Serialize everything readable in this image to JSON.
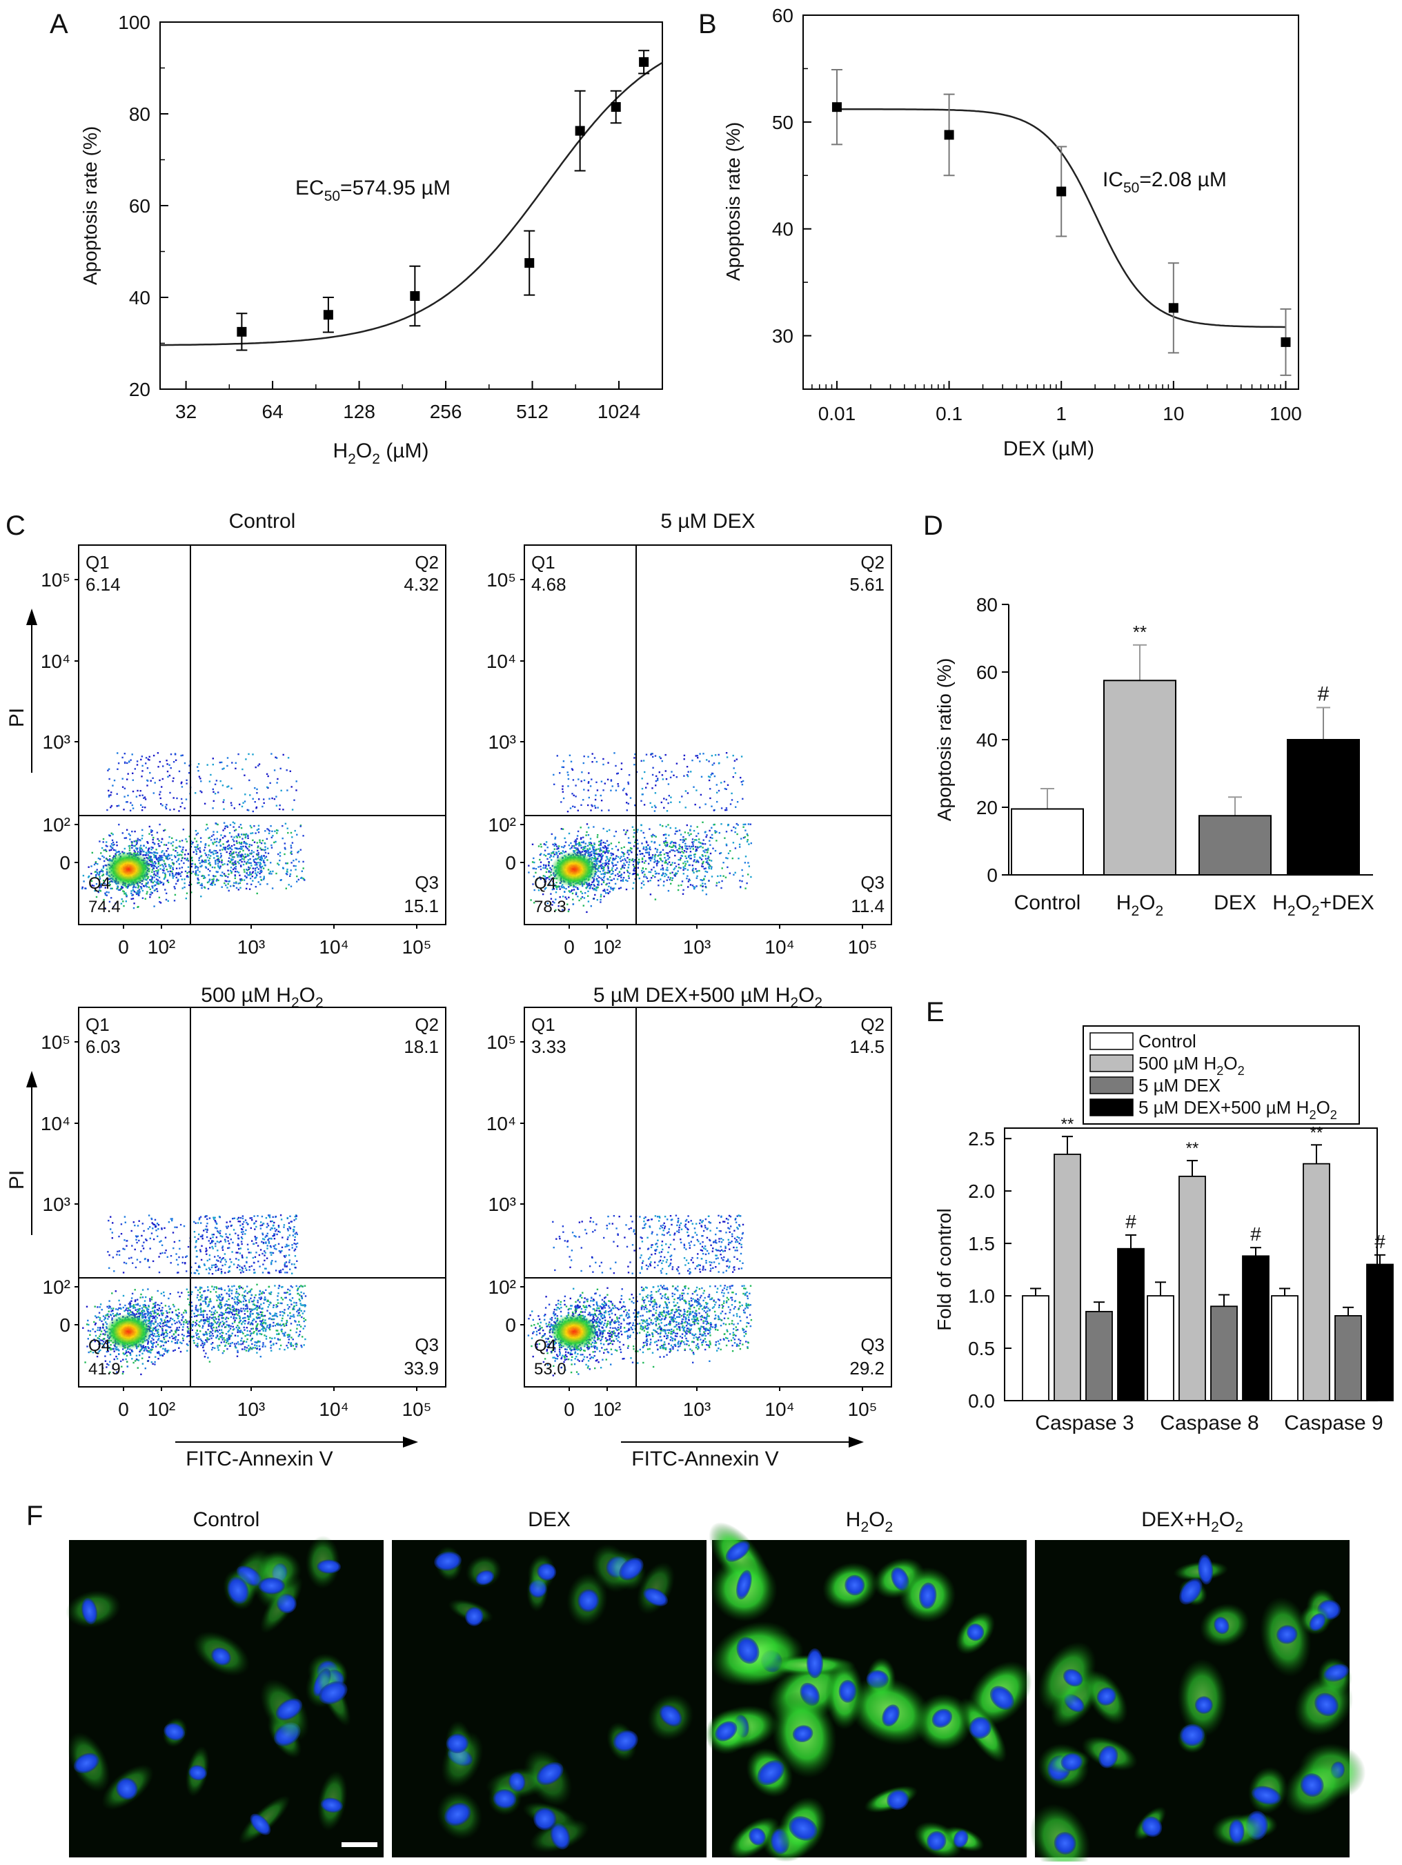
{
  "chart_data": [
    {
      "panel": "A",
      "type": "scatter",
      "xlabel": "H2O2 (µM)",
      "ylabel": "Apoptosis rate (%)",
      "xscale": "log2",
      "xlim": [
        26,
        1450
      ],
      "ylim": [
        20,
        100
      ],
      "xticks": [
        "32",
        "64",
        "128",
        "256",
        "512",
        "1024"
      ],
      "yticks": [
        "20",
        "40",
        "60",
        "80",
        "100"
      ],
      "x": [
        50,
        100,
        200,
        500,
        750,
        1000,
        1250
      ],
      "y": [
        32.5,
        36.2,
        40.3,
        47.5,
        76.3,
        81.5,
        91.3
      ],
      "err": [
        4.0,
        3.8,
        6.5,
        7.0,
        8.7,
        3.5,
        2.5
      ],
      "fit": {
        "kind": "logistic",
        "bottom": 29.5,
        "top": 100,
        "ec50": 574.95,
        "hill": 2.1
      },
      "annotation": "EC50=574.95 µM"
    },
    {
      "panel": "B",
      "type": "scatter",
      "xlabel": "DEX (µM)",
      "ylabel": "Apoptosis rate (%)",
      "xscale": "log10",
      "xlim": [
        0.005,
        130
      ],
      "ylim": [
        25,
        60
      ],
      "xticks": [
        "0.01",
        "0.1",
        "1",
        "10",
        "100"
      ],
      "yticks": [
        "30",
        "40",
        "50",
        "60"
      ],
      "x": [
        0.01,
        0.1,
        1,
        10,
        100
      ],
      "y": [
        51.4,
        48.8,
        43.5,
        32.6,
        29.4
      ],
      "err": [
        3.5,
        3.8,
        4.2,
        4.2,
        3.1
      ],
      "fit": {
        "kind": "logistic",
        "bottom": 30.8,
        "top": 51.2,
        "ic50": 2.08,
        "hill": 1.9
      },
      "annotation": "IC50=2.08 µM"
    },
    {
      "panel": "D",
      "type": "bar",
      "ylabel": "Apoptosis ratio (%)",
      "ylim": [
        0,
        80
      ],
      "yticks": [
        "0",
        "20",
        "40",
        "60",
        "80"
      ],
      "categories": [
        "Control",
        "H2O2",
        "DEX",
        "H2O2+DEX"
      ],
      "values": [
        19.5,
        57.5,
        17.5,
        40.0
      ],
      "err": [
        6.0,
        10.5,
        5.5,
        9.5
      ],
      "colors": [
        "#ffffff",
        "#bdbdbd",
        "#7a7a7a",
        "#000000"
      ],
      "markers": [
        "",
        "**",
        "",
        "#"
      ]
    },
    {
      "panel": "E",
      "type": "bar",
      "ylabel": "Fold of control",
      "ylim": [
        0,
        2.6
      ],
      "yticks": [
        "0.0",
        "0.5",
        "1.0",
        "1.5",
        "2.0",
        "2.5"
      ],
      "categories": [
        "Caspase 3",
        "Caspase 8",
        "Caspase 9"
      ],
      "series": [
        {
          "name": "Control",
          "color": "#ffffff",
          "values": [
            1.0,
            1.0,
            1.0
          ],
          "err": [
            0.07,
            0.13,
            0.07
          ],
          "markers": [
            "",
            "",
            ""
          ]
        },
        {
          "name": "500 µM H2O2",
          "color": "#bdbdbd",
          "values": [
            2.35,
            2.14,
            2.26
          ],
          "err": [
            0.17,
            0.15,
            0.18
          ],
          "markers": [
            "**",
            "**",
            "**"
          ]
        },
        {
          "name": "5 µM DEX",
          "color": "#7a7a7a",
          "values": [
            0.85,
            0.9,
            0.81
          ],
          "err": [
            0.09,
            0.11,
            0.08
          ],
          "markers": [
            "",
            "",
            ""
          ]
        },
        {
          "name": "5 µM DEX+500 µM H2O2",
          "color": "#000000",
          "values": [
            1.45,
            1.38,
            1.3
          ],
          "err": [
            0.13,
            0.08,
            0.09
          ],
          "markers": [
            "#",
            "#",
            "#"
          ]
        }
      ],
      "legend_position": "top"
    }
  ],
  "panel_labels": {
    "a": "A",
    "b": "B",
    "c": "C",
    "d": "D",
    "e": "E",
    "f": "F"
  },
  "flow": {
    "ylabel": "PI",
    "xlabel": "FITC-Annexin V",
    "xticks": [
      "0",
      "10²",
      "10³",
      "10⁴",
      "10⁵"
    ],
    "yticks": [
      "10⁵",
      "10⁴",
      "10³",
      "10²",
      "0"
    ],
    "plots": [
      {
        "title": "Control",
        "q1": "6.14",
        "q2": "4.32",
        "q3": "15.1",
        "q4": "74.4",
        "ul": 0.0614,
        "ur": 0.0432
      },
      {
        "title": "5 µM DEX",
        "q1": "4.68",
        "q2": "5.61",
        "q3": "11.4",
        "q4": "78.3",
        "ul": 0.0468,
        "ur": 0.0561
      },
      {
        "title": "500 µM H2O2",
        "q1": "6.03",
        "q2": "18.1",
        "q3": "33.9",
        "q4": "41.9",
        "ul": 0.0603,
        "ur": 0.181
      },
      {
        "title": "5 µM DEX+500 µM H2O2",
        "q1": "3.33",
        "q2": "14.5",
        "q3": "29.2",
        "q4": "53.0",
        "ul": 0.0333,
        "ur": 0.145
      }
    ],
    "quadrant_names": {
      "q1": "Q1",
      "q2": "Q2",
      "q3": "Q3",
      "q4": "Q4"
    }
  },
  "microscopy": {
    "titles": [
      "Control",
      "DEX",
      "H2O2",
      "DEX+H2O2"
    ],
    "intensity": [
      0.35,
      0.25,
      1.0,
      0.65
    ]
  }
}
